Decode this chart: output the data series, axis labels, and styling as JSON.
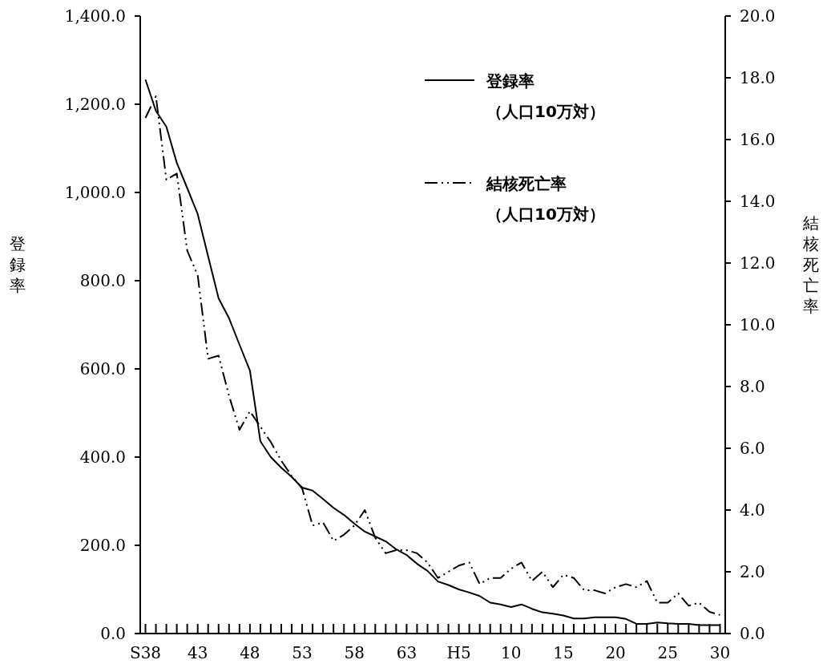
{
  "chart_data": {
    "type": "line",
    "categories": [
      "S38",
      null,
      null,
      null,
      null,
      "43",
      null,
      null,
      null,
      null,
      "48",
      null,
      null,
      null,
      null,
      "53",
      null,
      null,
      null,
      null,
      "58",
      null,
      null,
      null,
      null,
      "63",
      null,
      null,
      null,
      null,
      "H5",
      null,
      null,
      null,
      null,
      "10",
      null,
      null,
      null,
      null,
      "15",
      null,
      null,
      null,
      null,
      "20",
      null,
      null,
      null,
      null,
      "25",
      null,
      null,
      null,
      null,
      "30"
    ],
    "ylabel": "登録率",
    "y2label": "結核死亡率",
    "ylim": [
      0,
      1400
    ],
    "yticks": [
      {
        "value": 0,
        "label": "0.0"
      },
      {
        "value": 200,
        "label": "200.0"
      },
      {
        "value": 400,
        "label": "400.0"
      },
      {
        "value": 600,
        "label": "600.0"
      },
      {
        "value": 800,
        "label": "800.0"
      },
      {
        "value": 1000,
        "label": "1,000.0"
      },
      {
        "value": 1200,
        "label": "1,200.0"
      },
      {
        "value": 1400,
        "label": "1,400.0"
      }
    ],
    "y2lim": [
      0,
      20
    ],
    "y2ticks": [
      {
        "value": 0,
        "label": "0.0"
      },
      {
        "value": 2,
        "label": "2.0"
      },
      {
        "value": 4,
        "label": "4.0"
      },
      {
        "value": 6,
        "label": "6.0"
      },
      {
        "value": 8,
        "label": "8.0"
      },
      {
        "value": 10,
        "label": "10.0"
      },
      {
        "value": 12,
        "label": "12.0"
      },
      {
        "value": 14,
        "label": "14.0"
      },
      {
        "value": 16,
        "label": "16.0"
      },
      {
        "value": 18,
        "label": "18.0"
      },
      {
        "value": 20,
        "label": "20.0"
      }
    ],
    "legend": "top right",
    "grid": false,
    "marker": "none",
    "series": [
      {
        "name": "登録率（人口10万対）",
        "color": "#000000",
        "line_style": "solid",
        "values": [
          1256,
          1185,
          1149,
          1067,
          1010,
          951,
          855,
          760,
          715,
          655,
          596,
          436,
          400,
          376,
          355,
          331,
          324,
          305,
          285,
          269,
          249,
          231,
          220,
          209,
          191,
          178,
          158,
          142,
          118,
          110,
          100,
          93,
          85,
          70,
          66,
          60,
          66,
          56,
          48,
          45,
          41,
          34,
          34,
          37,
          37,
          37,
          33,
          22,
          22,
          25,
          23,
          22,
          22,
          19,
          19,
          19
        ]
      },
      {
        "name": "結核死亡率（人口10万対）",
        "color": "#000000",
        "line_style": "dashed",
        "axis": "y2",
        "values": [
          16.7,
          17.4,
          14.7,
          14.9,
          12.4,
          11.6,
          8.9,
          9.0,
          7.7,
          6.6,
          7.2,
          6.7,
          6.2,
          5.6,
          5.1,
          4.7,
          3.5,
          3.6,
          3.0,
          3.2,
          3.5,
          4.0,
          3.1,
          2.6,
          2.7,
          2.7,
          2.6,
          2.3,
          1.8,
          2.0,
          2.2,
          2.3,
          1.6,
          1.8,
          1.8,
          2.1,
          2.3,
          1.7,
          2.0,
          1.5,
          1.9,
          1.8,
          1.4,
          1.4,
          1.3,
          1.5,
          1.6,
          1.5,
          1.7,
          1.0,
          1.0,
          1.3,
          0.9,
          1.0,
          0.7,
          0.6
        ]
      }
    ]
  }
}
